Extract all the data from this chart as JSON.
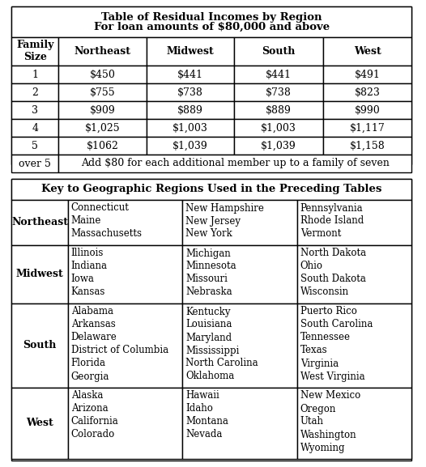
{
  "table1_title1": "Table of Residual Incomes by Region",
  "table1_title2": "For loan amounts of $80,000 and above",
  "table1_headers": [
    "Family\nSize",
    "Northeast",
    "Midwest",
    "South",
    "West"
  ],
  "table1_rows": [
    [
      "1",
      "$450",
      "$441",
      "$441",
      "$491"
    ],
    [
      "2",
      "$755",
      "$738",
      "$738",
      "$823"
    ],
    [
      "3",
      "$909",
      "$889",
      "$889",
      "$990"
    ],
    [
      "4",
      "$1,025",
      "$1,003",
      "$1,003",
      "$1,117"
    ],
    [
      "5",
      "$1062",
      "$1,039",
      "$1,039",
      "$1,158"
    ],
    [
      "over 5",
      "Add $80 for each additional member up to a family of seven",
      "",
      "",
      ""
    ]
  ],
  "table2_title": "Key to Geographic Regions Used in the Preceding Tables",
  "table2_regions": [
    "Northeast",
    "Midwest",
    "South",
    "West"
  ],
  "table2_data": {
    "Northeast": [
      [
        "Connecticut",
        "New Hampshire",
        "Pennsylvania"
      ],
      [
        "Maine",
        "New Jersey",
        "Rhode Island"
      ],
      [
        "Massachusetts",
        "New York",
        "Vermont"
      ]
    ],
    "Midwest": [
      [
        "Illinois",
        "Michigan",
        "North Dakota"
      ],
      [
        "Indiana",
        "Minnesota",
        "Ohio"
      ],
      [
        "Iowa",
        "Missouri",
        "South Dakota"
      ],
      [
        "Kansas",
        "Nebraska",
        "Wisconsin"
      ]
    ],
    "South": [
      [
        "Alabama",
        "Kentucky",
        "Puerto Rico"
      ],
      [
        "Arkansas",
        "Louisiana",
        "South Carolina"
      ],
      [
        "Delaware",
        "Maryland",
        "Tennessee"
      ],
      [
        "District of Columbia",
        "Mississippi",
        "Texas"
      ],
      [
        "Florida",
        "North Carolina",
        "Virginia"
      ],
      [
        "Georgia",
        "Oklahoma",
        "West Virginia"
      ]
    ],
    "West": [
      [
        "Alaska",
        "Hawaii",
        "New Mexico"
      ],
      [
        "Arizona",
        "Idaho",
        "Oregon"
      ],
      [
        "California",
        "Montana",
        "Utah"
      ],
      [
        "Colorado",
        "Nevada",
        "Washington"
      ],
      [
        "",
        "",
        "Wyoming"
      ]
    ]
  },
  "bg_color": "#ffffff",
  "border_color": "#000000",
  "header_bg": "#ffffff",
  "text_color": "#000000"
}
